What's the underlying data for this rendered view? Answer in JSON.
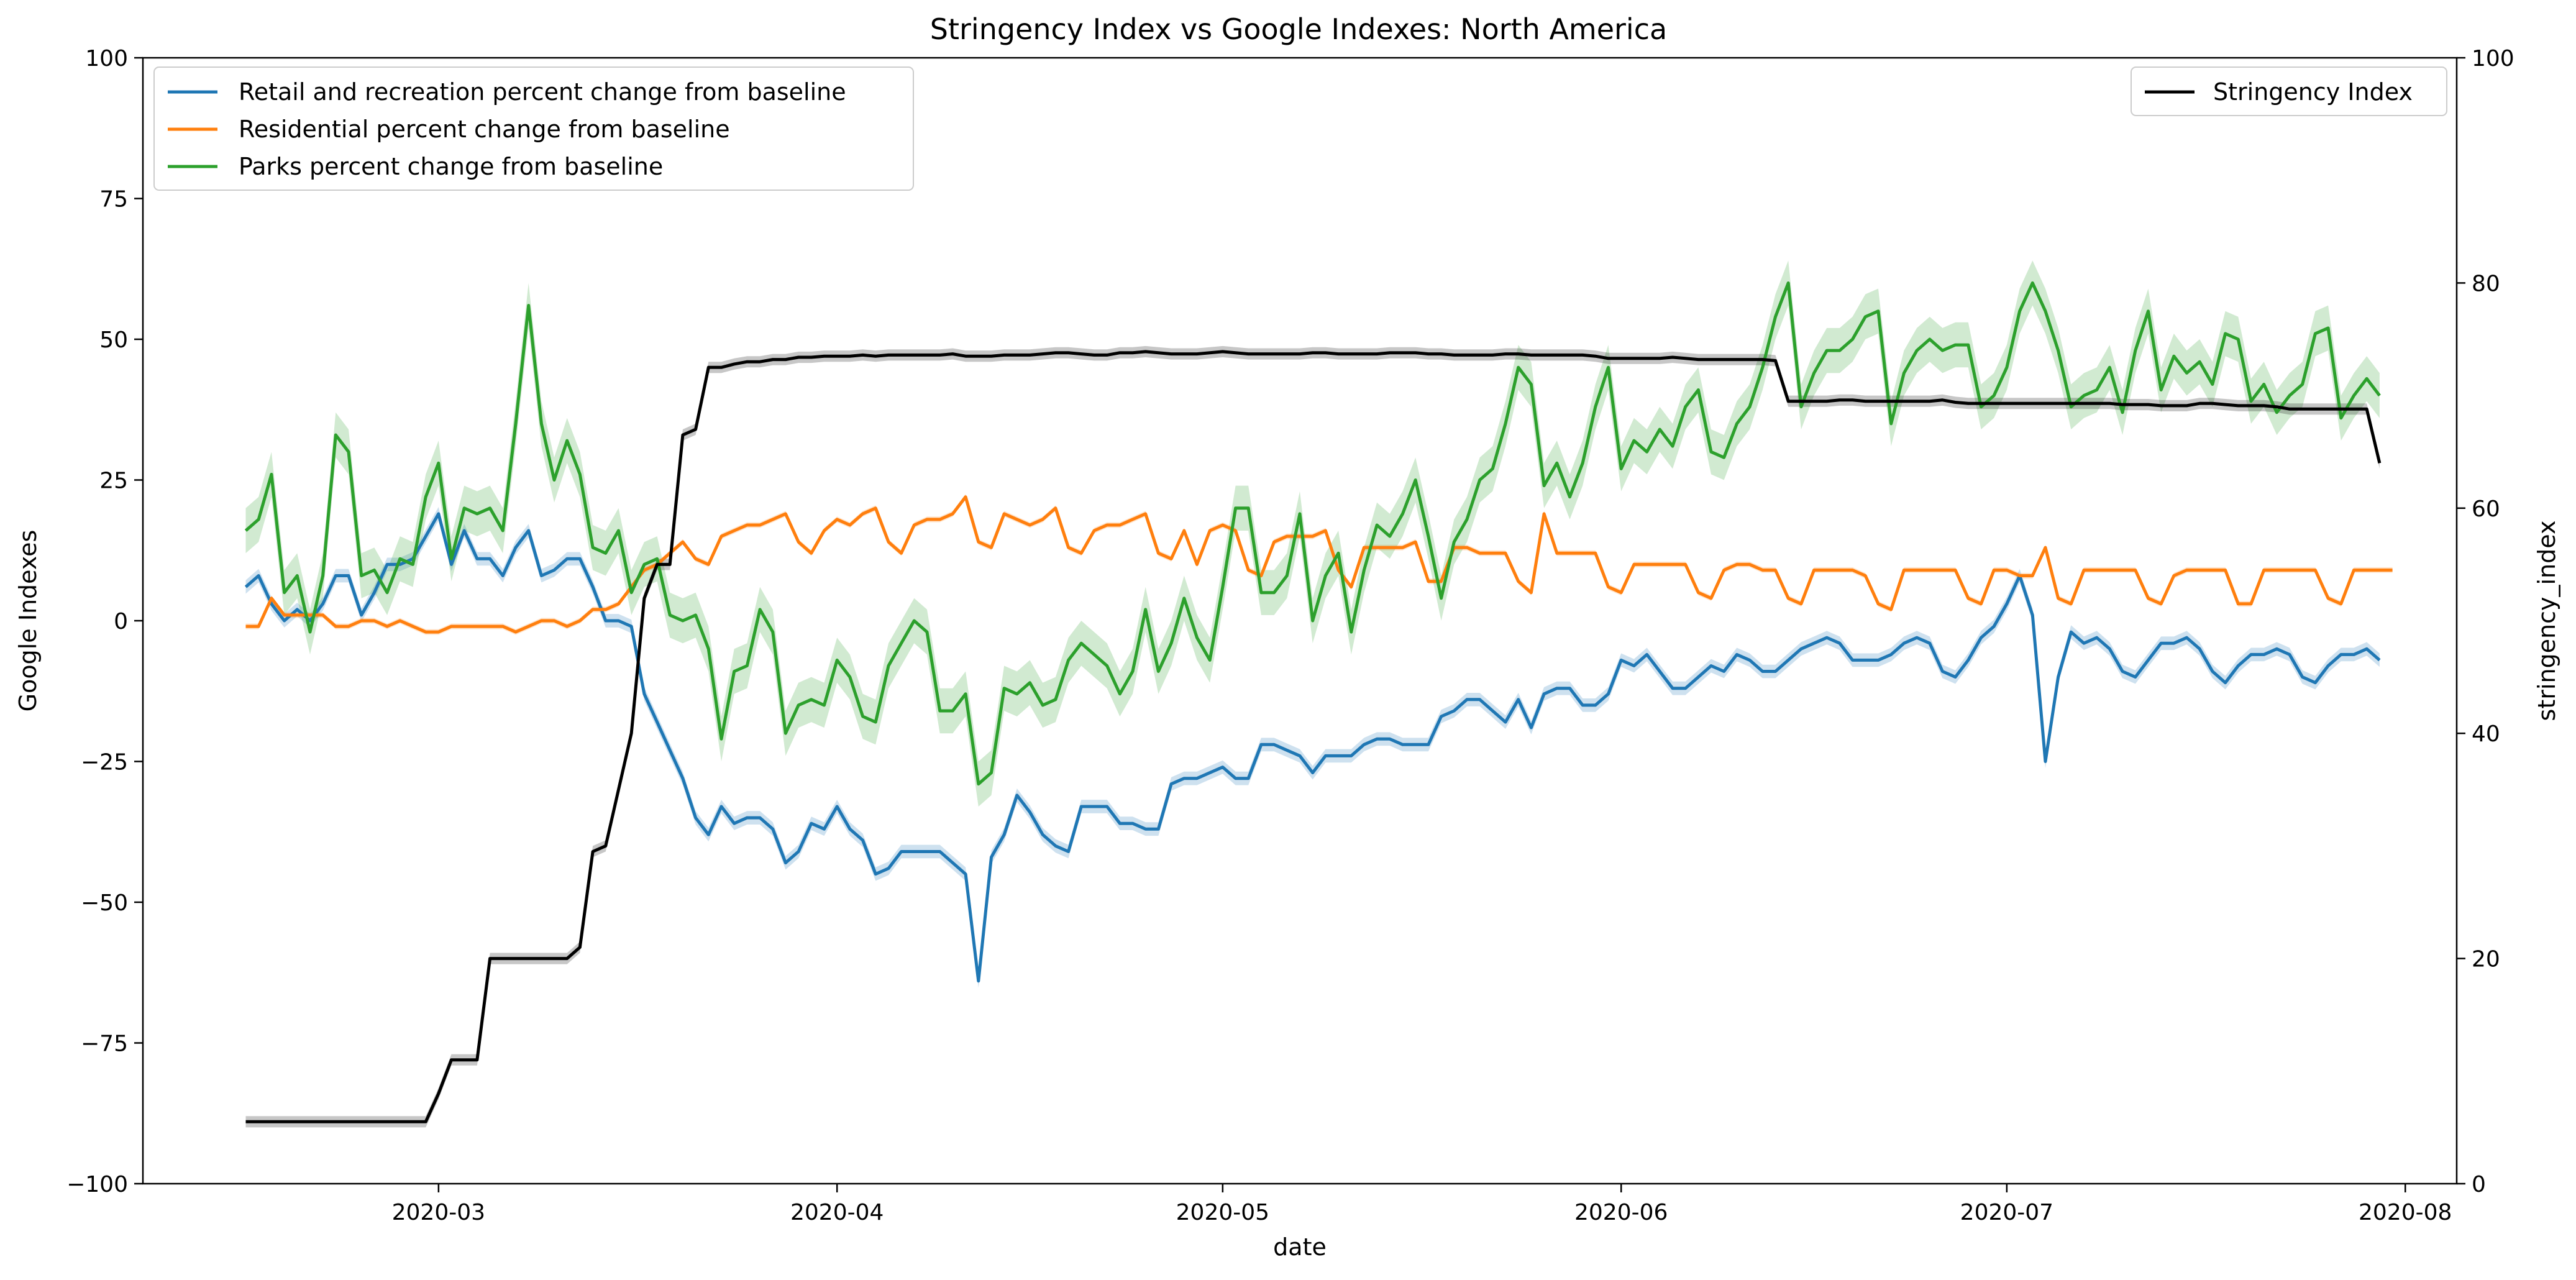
{
  "chart_data": {
    "type": "line",
    "title": "Stringency Index vs Google Indexes:  North America",
    "xlabel": "date",
    "ylabel": "Google Indexes",
    "y2label": "stringency_index",
    "x_start": "2020-02-15",
    "x_end": "2020-07-30",
    "xlim": [
      "2020-02-07",
      "2020-08-05"
    ],
    "xticks": [
      "2020-03-01",
      "2020-04-01",
      "2020-05-01",
      "2020-06-01",
      "2020-07-01",
      "2020-08-01"
    ],
    "xtick_labels": [
      "2020-03",
      "2020-04",
      "2020-05",
      "2020-06",
      "2020-07",
      "2020-08"
    ],
    "ylim": [
      -100,
      100
    ],
    "yticks": [
      -100,
      -75,
      -50,
      -25,
      0,
      25,
      50,
      75,
      100
    ],
    "y2lim": [
      0,
      100
    ],
    "y2ticks": [
      0,
      20,
      40,
      60,
      80,
      100
    ],
    "grid": false,
    "legend_left_position": "upper-left",
    "legend_right_position": "upper-right",
    "series": [
      {
        "name": "Retail and recreation percent change from baseline",
        "axis": "left",
        "color": "#1f77b4",
        "band": 1.2,
        "values": [
          6,
          8,
          3,
          0,
          2,
          0,
          3,
          8,
          8,
          1,
          5,
          10,
          10,
          11,
          15,
          19,
          10,
          16,
          11,
          11,
          8,
          13,
          16,
          8,
          9,
          11,
          11,
          6,
          0,
          0,
          -1,
          -13,
          -18,
          -23,
          -28,
          -35,
          -38,
          -33,
          -36,
          -35,
          -35,
          -37,
          -43,
          -41,
          -36,
          -37,
          -33,
          -37,
          -39,
          -45,
          -44,
          -41,
          -41,
          -41,
          -41,
          -43,
          -45,
          -64,
          -42,
          -38,
          -31,
          -34,
          -38,
          -40,
          -41,
          -33,
          -33,
          -33,
          -36,
          -36,
          -37,
          -37,
          -29,
          -28,
          -28,
          -27,
          -26,
          -28,
          -28,
          -22,
          -22,
          -23,
          -24,
          -27,
          -24,
          -24,
          -24,
          -22,
          -21,
          -21,
          -22,
          -22,
          -22,
          -17,
          -16,
          -14,
          -14,
          -16,
          -18,
          -14,
          -19,
          -13,
          -12,
          -12,
          -15,
          -15,
          -13,
          -7,
          -8,
          -6,
          -9,
          -12,
          -12,
          -10,
          -8,
          -9,
          -6,
          -7,
          -9,
          -9,
          -7,
          -5,
          -4,
          -3,
          -4,
          -7,
          -7,
          -7,
          -6,
          -4,
          -3,
          -4,
          -9,
          -10,
          -7,
          -3,
          -1,
          3,
          8,
          1,
          -25,
          -10,
          -2,
          -4,
          -3,
          -5,
          -9,
          -10,
          -7,
          -4,
          -4,
          -3,
          -5,
          -9,
          -11,
          -8,
          -6,
          -6,
          -5,
          -6,
          -10,
          -11,
          -8,
          -6,
          -6,
          -5,
          -7
        ]
      },
      {
        "name": "Residential percent change from baseline",
        "axis": "left",
        "color": "#ff7f0e",
        "band": 0.5,
        "values": [
          -1,
          -1,
          4,
          1,
          1,
          1,
          1,
          -1,
          -1,
          0,
          0,
          -1,
          0,
          -1,
          -2,
          -2,
          -1,
          -1,
          -1,
          -1,
          -1,
          -2,
          -1,
          0,
          0,
          -1,
          0,
          2,
          2,
          3,
          6,
          9,
          10,
          12,
          14,
          11,
          10,
          15,
          16,
          17,
          17,
          18,
          19,
          14,
          12,
          16,
          18,
          17,
          19,
          20,
          14,
          12,
          17,
          18,
          18,
          19,
          22,
          14,
          13,
          19,
          18,
          17,
          18,
          20,
          13,
          12,
          16,
          17,
          17,
          18,
          19,
          12,
          11,
          16,
          10,
          16,
          17,
          16,
          9,
          8,
          14,
          15,
          15,
          15,
          16,
          9,
          6,
          13,
          13,
          13,
          13,
          14,
          7,
          7,
          13,
          13,
          12,
          12,
          12,
          7,
          5,
          19,
          12,
          12,
          12,
          12,
          6,
          5,
          10,
          10,
          10,
          10,
          10,
          5,
          4,
          9,
          10,
          10,
          9,
          9,
          4,
          3,
          9,
          9,
          9,
          9,
          8,
          3,
          2,
          9,
          9,
          9,
          9,
          9,
          4,
          3,
          9,
          9,
          8,
          8,
          13,
          4,
          3,
          9,
          9,
          9,
          9,
          9,
          4,
          3,
          8,
          9,
          9,
          9,
          9,
          3,
          3,
          9,
          9,
          9,
          9,
          9,
          4,
          3,
          9,
          9,
          9,
          9
        ]
      },
      {
        "name": "Parks percent change from baseline",
        "axis": "left",
        "color": "#2ca02c",
        "band": 4,
        "values": [
          16,
          18,
          26,
          5,
          8,
          -2,
          8,
          33,
          30,
          8,
          9,
          5,
          11,
          10,
          22,
          28,
          11,
          20,
          19,
          20,
          16,
          35,
          56,
          35,
          25,
          32,
          26,
          13,
          12,
          16,
          5,
          10,
          11,
          1,
          0,
          1,
          -5,
          -21,
          -9,
          -8,
          2,
          -2,
          -20,
          -15,
          -14,
          -15,
          -7,
          -10,
          -17,
          -18,
          -8,
          -4,
          0,
          -2,
          -16,
          -16,
          -13,
          -29,
          -27,
          -12,
          -13,
          -11,
          -15,
          -14,
          -7,
          -4,
          -6,
          -8,
          -13,
          -9,
          2,
          -9,
          -4,
          4,
          -3,
          -7,
          6,
          20,
          20,
          5,
          5,
          8,
          19,
          0,
          8,
          12,
          -2,
          9,
          17,
          15,
          19,
          25,
          15,
          4,
          14,
          18,
          25,
          27,
          35,
          45,
          42,
          24,
          28,
          22,
          28,
          38,
          45,
          27,
          32,
          30,
          34,
          31,
          38,
          41,
          30,
          29,
          35,
          38,
          45,
          54,
          60,
          38,
          44,
          48,
          48,
          50,
          54,
          55,
          35,
          44,
          48,
          50,
          48,
          49,
          49,
          38,
          40,
          45,
          55,
          60,
          55,
          48,
          38,
          40,
          41,
          45,
          37,
          48,
          55,
          41,
          47,
          44,
          46,
          42,
          51,
          50,
          39,
          42,
          37,
          40,
          42,
          51,
          52,
          36,
          40,
          43,
          40
        ]
      },
      {
        "name": "Stringency Index",
        "axis": "right",
        "color": "#000000",
        "band": 0.5,
        "values": [
          5.5,
          5.5,
          5.5,
          5.5,
          5.5,
          5.5,
          5.5,
          5.5,
          5.5,
          5.5,
          5.5,
          5.5,
          5.5,
          5.5,
          5.5,
          8,
          11,
          11,
          11,
          20,
          20,
          20,
          20,
          20,
          20,
          20,
          21,
          29.5,
          30,
          35,
          40,
          52,
          55,
          55,
          66.5,
          67,
          72.5,
          72.5,
          72.8,
          73,
          73,
          73.2,
          73.2,
          73.4,
          73.4,
          73.5,
          73.5,
          73.5,
          73.6,
          73.5,
          73.6,
          73.6,
          73.6,
          73.6,
          73.6,
          73.7,
          73.5,
          73.5,
          73.5,
          73.6,
          73.6,
          73.6,
          73.7,
          73.8,
          73.8,
          73.7,
          73.6,
          73.6,
          73.8,
          73.8,
          73.9,
          73.8,
          73.7,
          73.7,
          73.7,
          73.8,
          73.9,
          73.8,
          73.7,
          73.7,
          73.7,
          73.7,
          73.7,
          73.8,
          73.8,
          73.7,
          73.7,
          73.7,
          73.7,
          73.8,
          73.8,
          73.8,
          73.7,
          73.7,
          73.6,
          73.6,
          73.6,
          73.6,
          73.7,
          73.7,
          73.6,
          73.6,
          73.6,
          73.6,
          73.6,
          73.5,
          73.3,
          73.3,
          73.3,
          73.3,
          73.3,
          73.4,
          73.3,
          73.2,
          73.2,
          73.2,
          73.2,
          73.2,
          73.2,
          73.1,
          69.5,
          69.5,
          69.5,
          69.5,
          69.6,
          69.6,
          69.5,
          69.5,
          69.5,
          69.5,
          69.5,
          69.5,
          69.6,
          69.4,
          69.3,
          69.3,
          69.3,
          69.3,
          69.3,
          69.3,
          69.3,
          69.3,
          69.3,
          69.3,
          69.3,
          69.3,
          69.2,
          69.2,
          69.2,
          69.1,
          69.1,
          69.1,
          69.3,
          69.3,
          69.2,
          69.1,
          69.1,
          69.1,
          69,
          68.8,
          68.8,
          68.8,
          68.8,
          68.8,
          68.8,
          68.8,
          64
        ]
      }
    ]
  }
}
